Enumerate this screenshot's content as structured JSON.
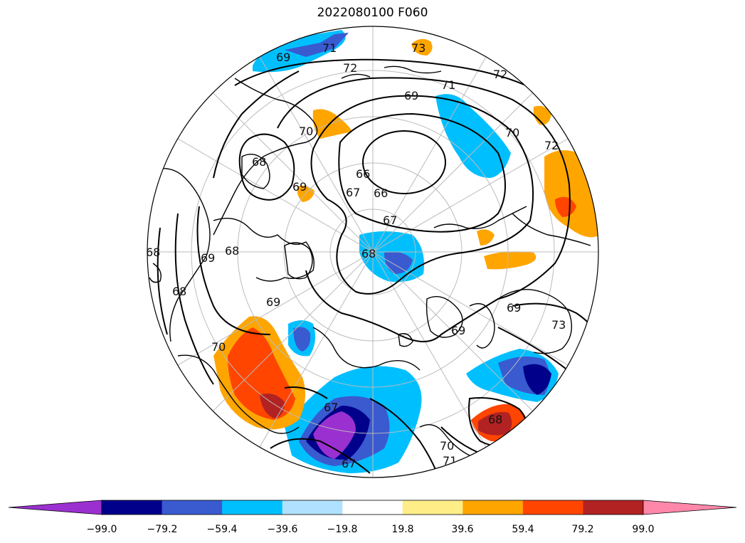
{
  "title": "2022080100 F060",
  "colorbar": {
    "ticks": [
      "−99.0",
      "−79.2",
      "−59.4",
      "−39.6",
      "−19.8",
      "19.8",
      "39.6",
      "59.4",
      "79.2",
      "99.0"
    ],
    "under_color": "#9b30d0",
    "over_color": "#ff88aa",
    "bin_colors": [
      "#00008b",
      "#3a5ad0",
      "#00bfff",
      "#b0e2ff",
      "#ffffff",
      "#ffee88",
      "#ffa500",
      "#ff4500",
      "#b22222"
    ]
  },
  "contour_labels": [
    "69",
    "71",
    "72",
    "72",
    "71",
    "69",
    "70",
    "70",
    "72",
    "68",
    "69",
    "66",
    "67",
    "66",
    "67",
    "68",
    "69",
    "69",
    "70",
    "68",
    "67",
    "70",
    "71",
    "69",
    "73",
    "73",
    "67",
    "68",
    "68",
    "68",
    "69"
  ],
  "map": {
    "projection": "north-polar-stereographic",
    "land_color": "#ffffff",
    "coast_color": "#000000",
    "grid_color": "#bbbbbb"
  }
}
